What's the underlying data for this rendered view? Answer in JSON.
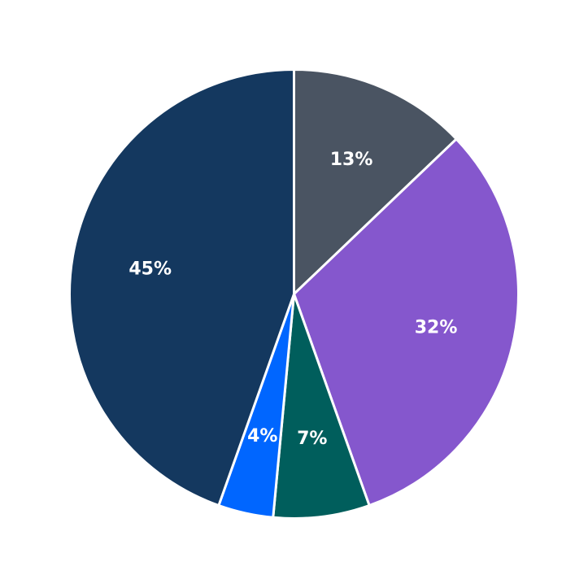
{
  "chart_data": {
    "type": "pie",
    "start_angle_deg": 90,
    "direction": "clockwise",
    "slices": [
      {
        "value": 13,
        "label": "13%",
        "color": "#4a5462"
      },
      {
        "value": 32,
        "label": "32%",
        "color": "#8557cd"
      },
      {
        "value": 7,
        "label": "7%",
        "color": "#005e5c"
      },
      {
        "value": 4,
        "label": "4%",
        "color": "#0066ff"
      },
      {
        "value": 45,
        "label": "45%",
        "color": "#14385f"
      }
    ]
  }
}
